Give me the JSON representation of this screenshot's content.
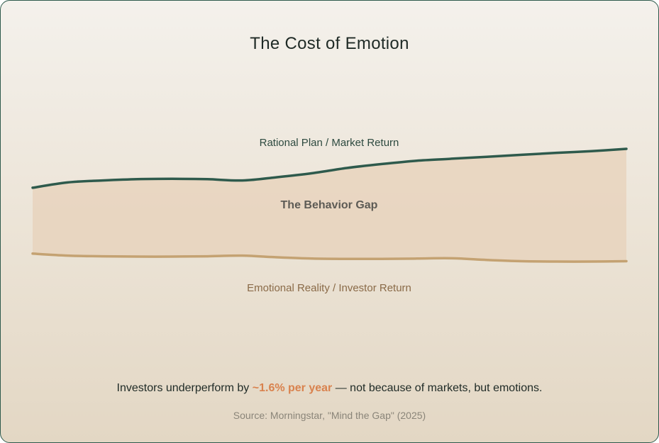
{
  "title": "The Cost of Emotion",
  "chart_data": {
    "type": "area",
    "series": [
      {
        "name": "Rational Plan / Market Return",
        "values": [
          0.0,
          0.08,
          0.11,
          0.13,
          0.135,
          0.13,
          0.11,
          0.16,
          0.22,
          0.3,
          0.36,
          0.41,
          0.44,
          0.47,
          0.5,
          0.53,
          0.555,
          0.59
        ]
      },
      {
        "name": "Emotional Reality / Investor Return",
        "values": [
          -1.0,
          -1.03,
          -1.04,
          -1.045,
          -1.045,
          -1.04,
          -1.03,
          -1.055,
          -1.075,
          -1.08,
          -1.08,
          -1.075,
          -1.07,
          -1.095,
          -1.115,
          -1.12,
          -1.12,
          -1.115
        ]
      }
    ],
    "gap_label": "The Behavior Gap",
    "colors": {
      "market_line": "#2e5a4c",
      "investor_line": "#c4a272",
      "gap_fill": "#e7d3bd",
      "market_label": "#2e4a40",
      "investor_label": "#8a6a48",
      "gap_label": "#5d5b55"
    }
  },
  "footer": {
    "prefix": "Investors underperform by ",
    "highlight": "~1.6% per year",
    "suffix": " — not because of markets, but emotions."
  },
  "source": "Source: Morningstar, \"Mind the Gap\" (2025)",
  "colors": {
    "border": "#2e5a4c",
    "highlight": "#d9824e"
  }
}
